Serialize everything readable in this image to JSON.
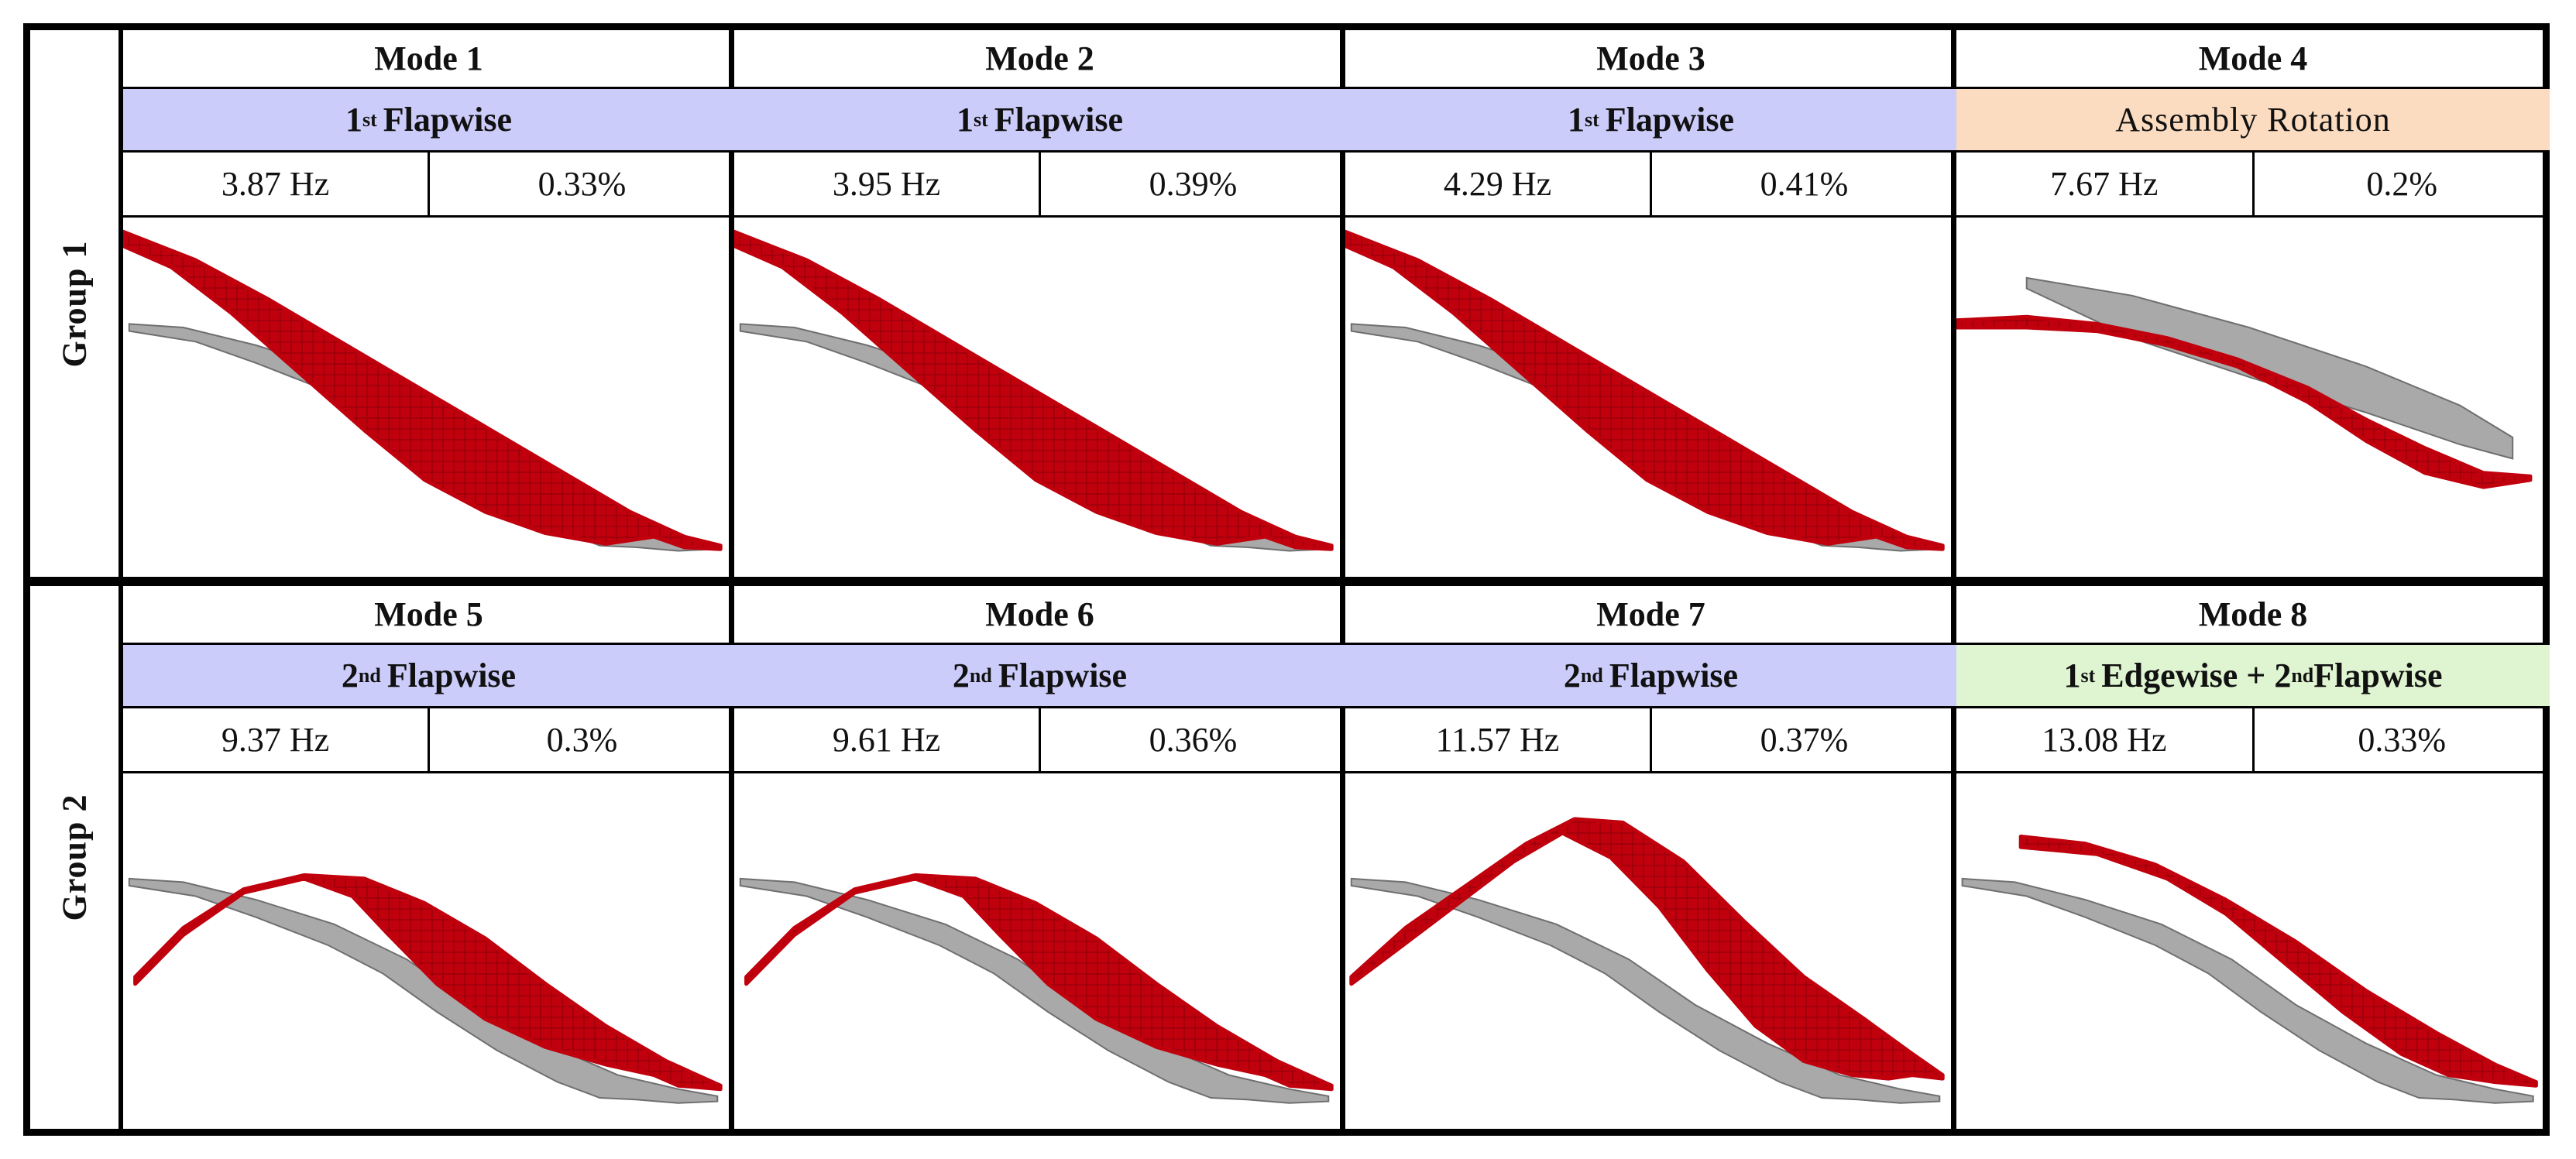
{
  "groups": [
    {
      "label": "Group 1",
      "modes": [
        {
          "title": "Mode 1",
          "type_ord": "1",
          "type_sup": "st",
          "type_text": "Flapwise",
          "freq": "3.87 Hz",
          "damping": "0.33%",
          "category": "flapwise",
          "shape": "first"
        },
        {
          "title": "Mode 2",
          "type_ord": "1",
          "type_sup": "st",
          "type_text": "Flapwise",
          "freq": "3.95 Hz",
          "damping": "0.39%",
          "category": "flapwise",
          "shape": "first"
        },
        {
          "title": "Mode 3",
          "type_ord": "1",
          "type_sup": "st",
          "type_text": "Flapwise",
          "freq": "4.29 Hz",
          "damping": "0.41%",
          "category": "flapwise",
          "shape": "first"
        },
        {
          "title": "Mode 4",
          "type_ord": "",
          "type_sup": "",
          "type_text": "Assembly Rotation",
          "freq": "7.67 Hz",
          "damping": "0.2%",
          "category": "rotation",
          "shape": "rotation"
        }
      ]
    },
    {
      "label": "Group 2",
      "modes": [
        {
          "title": "Mode 5",
          "type_ord": "2",
          "type_sup": "nd",
          "type_text": "Flapwise",
          "freq": "9.37 Hz",
          "damping": "0.3%",
          "category": "flapwise",
          "shape": "second"
        },
        {
          "title": "Mode 6",
          "type_ord": "2",
          "type_sup": "nd",
          "type_text": "Flapwise",
          "freq": "9.61 Hz",
          "damping": "0.36%",
          "category": "flapwise",
          "shape": "second"
        },
        {
          "title": "Mode 7",
          "type_ord": "2",
          "type_sup": "nd",
          "type_text": "Flapwise",
          "freq": "11.57 Hz",
          "damping": "0.37%",
          "category": "flapwise",
          "shape": "second_b"
        },
        {
          "title": "Mode 8",
          "type_ord": "1",
          "type_sup": "st",
          "type_text": "Edgewise + 2",
          "type_sup2": "nd",
          "type_text2": "Flapwise",
          "freq": "13.08 Hz",
          "damping": "0.33%",
          "category": "edgewise",
          "shape": "edgewise"
        }
      ]
    }
  ],
  "colors": {
    "flapwise": "#ccccfb",
    "rotation": "#fbdcc0",
    "edgewise": "#dff4d0",
    "deformed": "#c0000d",
    "deformed_dark": "#8a0008",
    "undeformed": "#a9a9a9",
    "undeformed_dark": "#6f6f6f"
  }
}
